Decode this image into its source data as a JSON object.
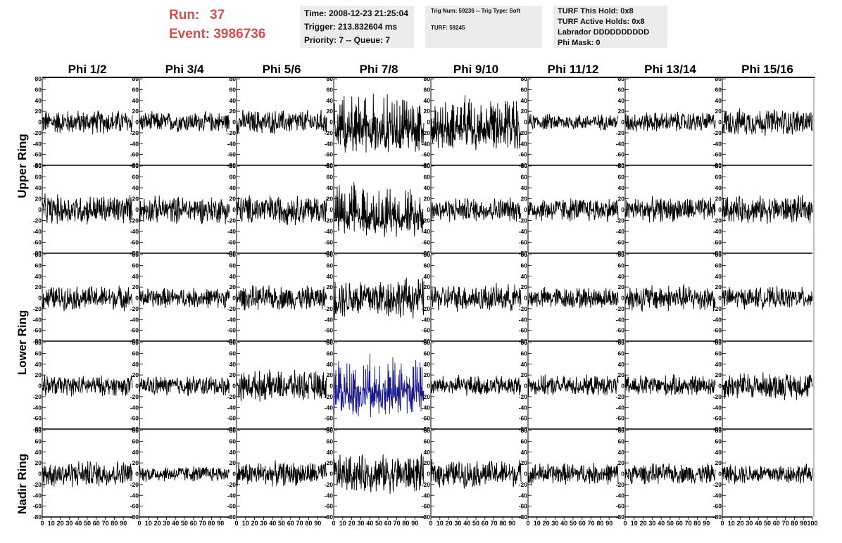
{
  "header": {
    "run_label": "Run:",
    "run_value": "37",
    "event_label": "Event:",
    "event_value": "3986736",
    "time": "Time: 2008-12-23 21:25:04",
    "trigger": "Trigger: 213.832604 ms",
    "priority": "Priority: 7 -- Queue: 7",
    "trig_num": "Trig Num: 59236 -- Trig Type: Soft",
    "turf": "TURF: 59245",
    "turf_this_hold": "TURF This Hold: 0x8",
    "turf_active_holds": "TURF Active Holds: 0x8",
    "labrador": "Labrador DDDDDDDDDD",
    "phi_mask": "Phi Mask: 0"
  },
  "colors": {
    "run_text": "#d05050",
    "trace": "#000000",
    "highlight_trace": "#1a1a8c",
    "info_bg": "#ececec"
  },
  "chart_data": {
    "type": "line",
    "columns": [
      "Phi 1/2",
      "Phi 3/4",
      "Phi 5/6",
      "Phi 7/8",
      "Phi 9/10",
      "Phi 11/12",
      "Phi 13/14",
      "Phi 15/16"
    ],
    "row_labels": [
      "Upper Ring",
      "Lower Ring",
      "Nadir Ring"
    ],
    "ylim": [
      -80,
      80
    ],
    "yticks": [
      "80",
      "60",
      "40",
      "20",
      "0",
      "-20",
      "-40",
      "-60",
      "-80"
    ],
    "xlim": [
      0,
      100
    ],
    "xticks": [
      "0",
      "10",
      "20",
      "30",
      "40",
      "50",
      "60",
      "70",
      "80",
      "90",
      "100"
    ],
    "highlight": {
      "row": 3,
      "column": 3
    },
    "amplitudes": [
      [
        18,
        15,
        18,
        45,
        40,
        12,
        15,
        20
      ],
      [
        22,
        20,
        22,
        38,
        18,
        18,
        18,
        20
      ],
      [
        18,
        15,
        18,
        30,
        20,
        16,
        20,
        16
      ],
      [
        15,
        15,
        22,
        45,
        15,
        15,
        16,
        20
      ],
      [
        20,
        12,
        18,
        28,
        20,
        16,
        15,
        15
      ]
    ]
  }
}
